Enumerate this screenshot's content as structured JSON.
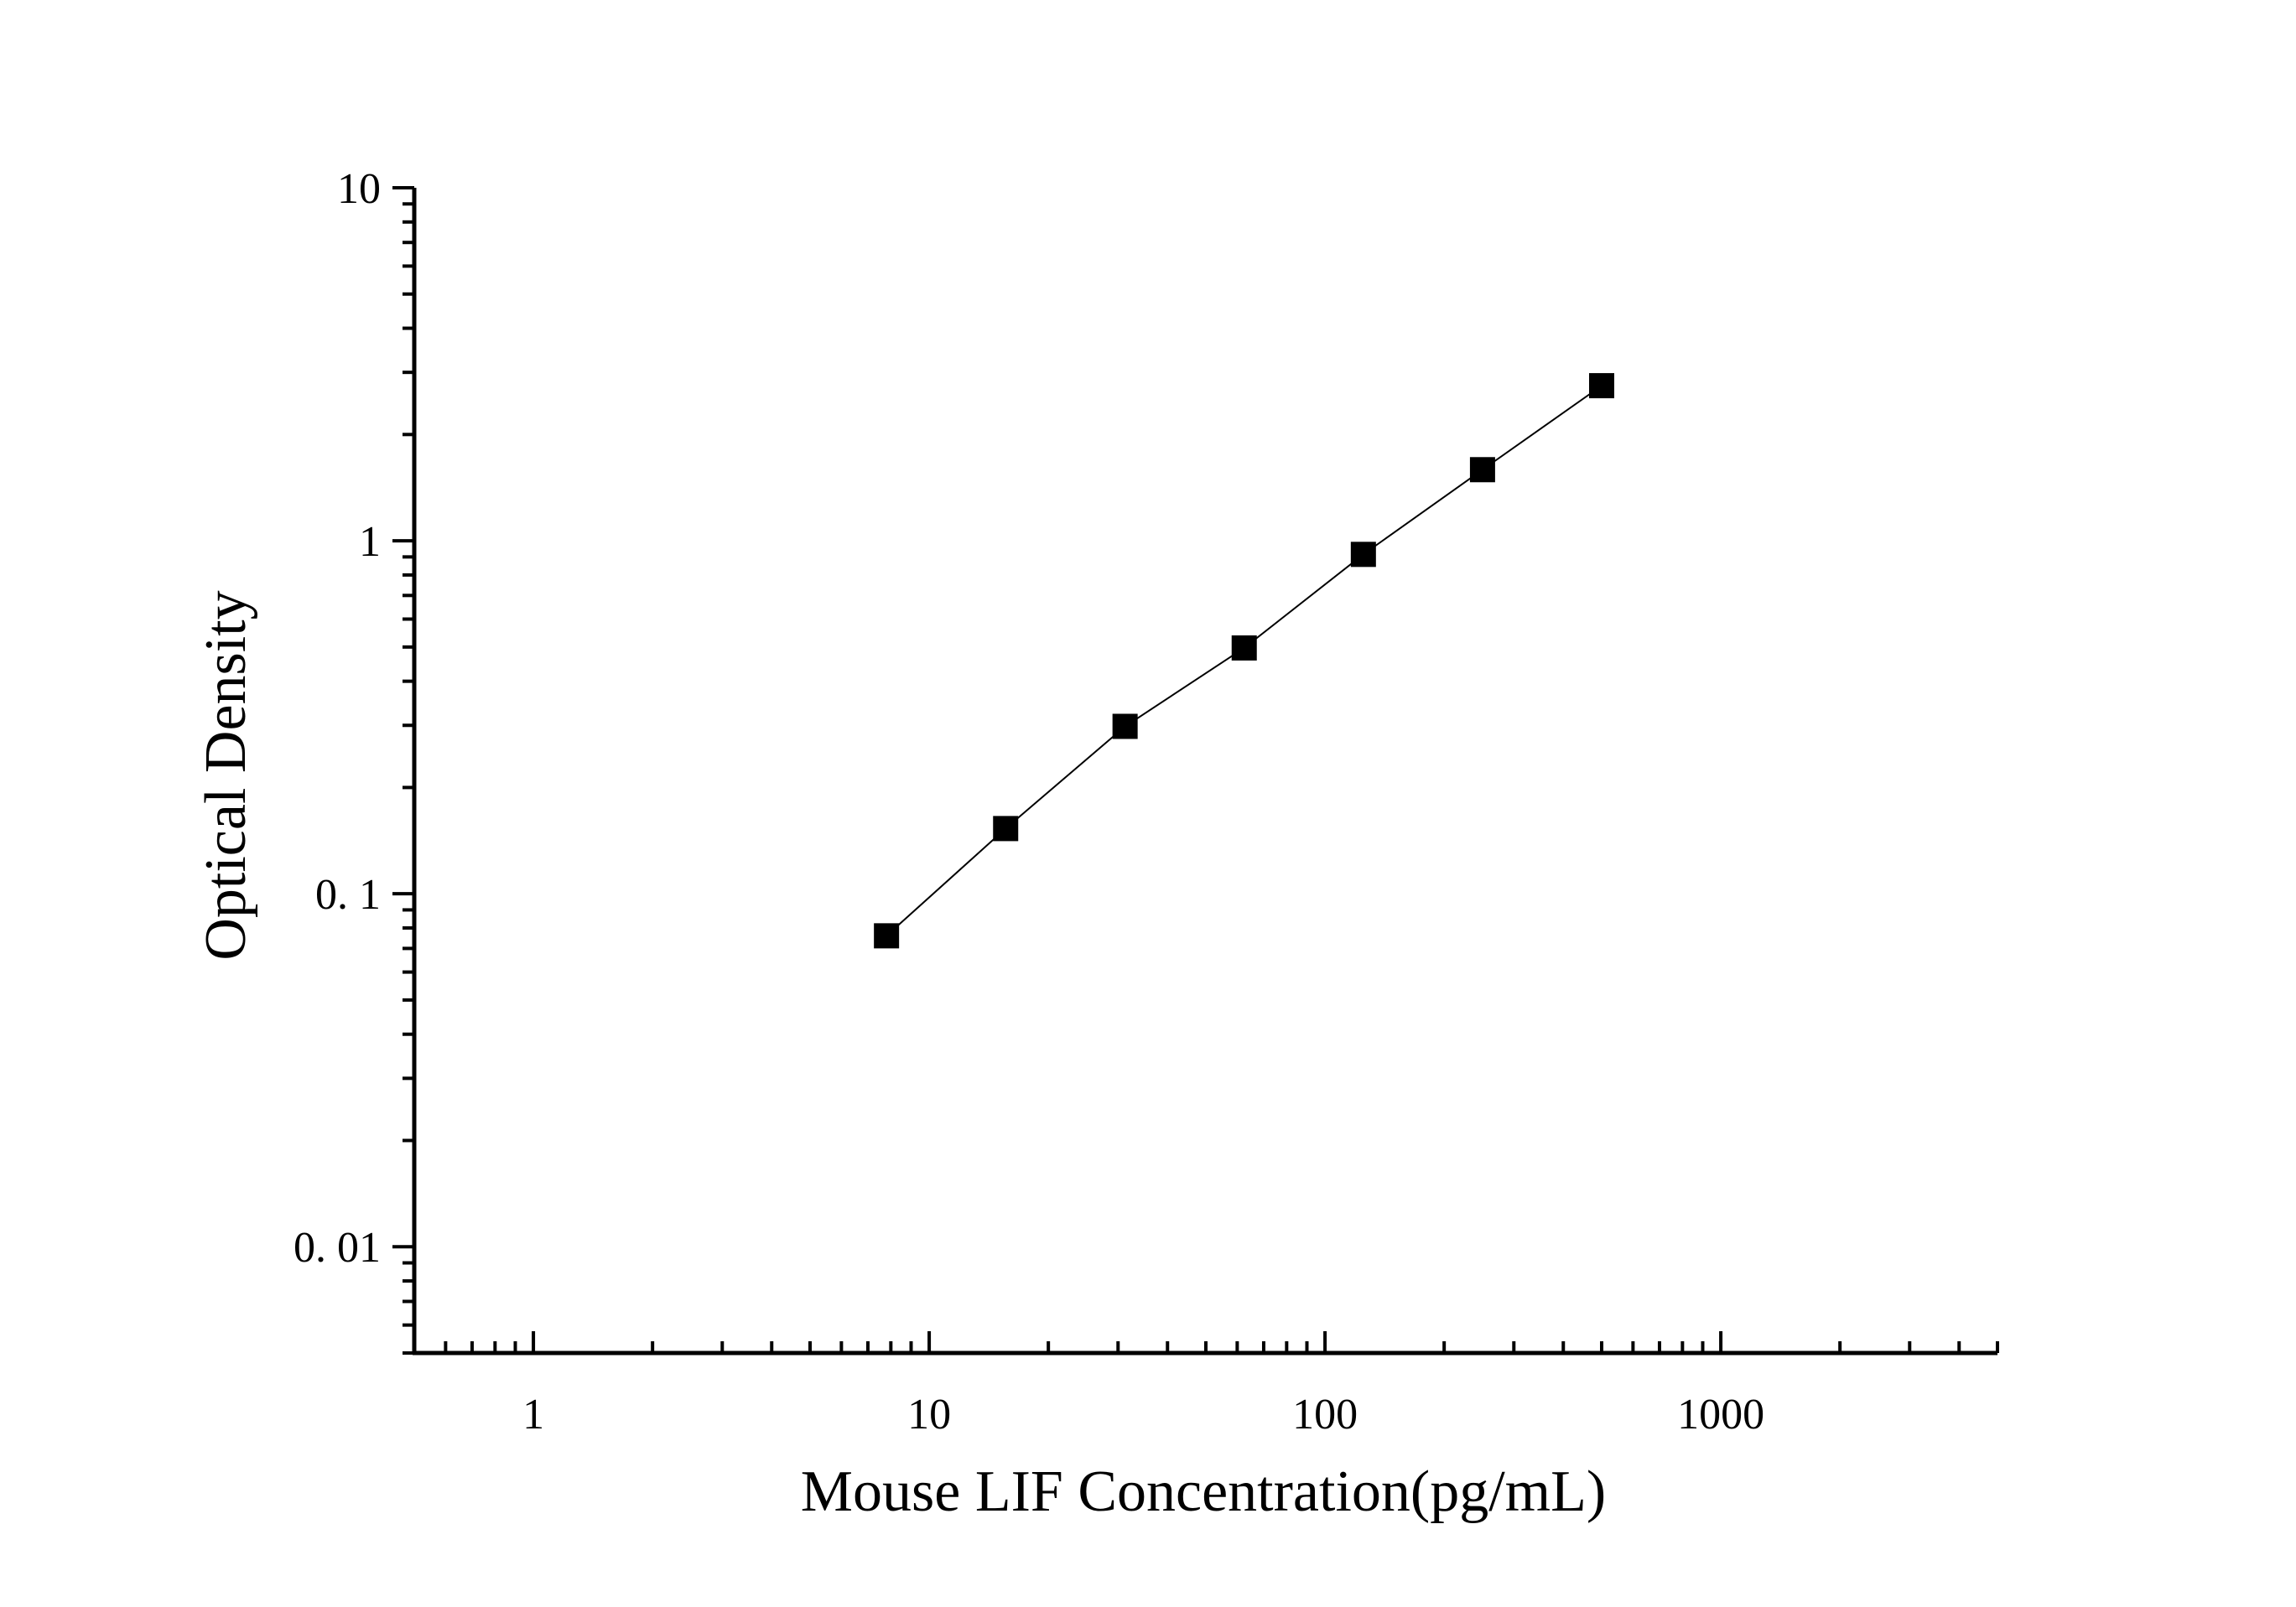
{
  "chart_data": {
    "type": "scatter",
    "title": "",
    "xlabel": "Mouse LIF Concentration(pg/mL)",
    "ylabel": "Optical Density",
    "xscale": "log",
    "yscale": "log",
    "xlim": [
      0.5,
      5000
    ],
    "ylim": [
      0.005,
      10
    ],
    "xticks": [
      1,
      10,
      100,
      1000
    ],
    "xtick_labels": [
      "1",
      "10",
      "100",
      "1000"
    ],
    "yticks": [
      0.01,
      0.1,
      1,
      10
    ],
    "ytick_labels": [
      "0. 01",
      "0. 1",
      "1",
      "10"
    ],
    "grid": false,
    "legend": "none",
    "series": [
      {
        "marker": "square",
        "fit_line": true,
        "x": [
          7.8,
          15.6,
          31.25,
          62.5,
          125,
          250,
          500
        ],
        "y": [
          0.076,
          0.153,
          0.298,
          0.497,
          0.915,
          1.59,
          2.75
        ]
      }
    ],
    "colors": {
      "axis": "#000000",
      "marker": "#000000",
      "line": "#000000"
    }
  }
}
